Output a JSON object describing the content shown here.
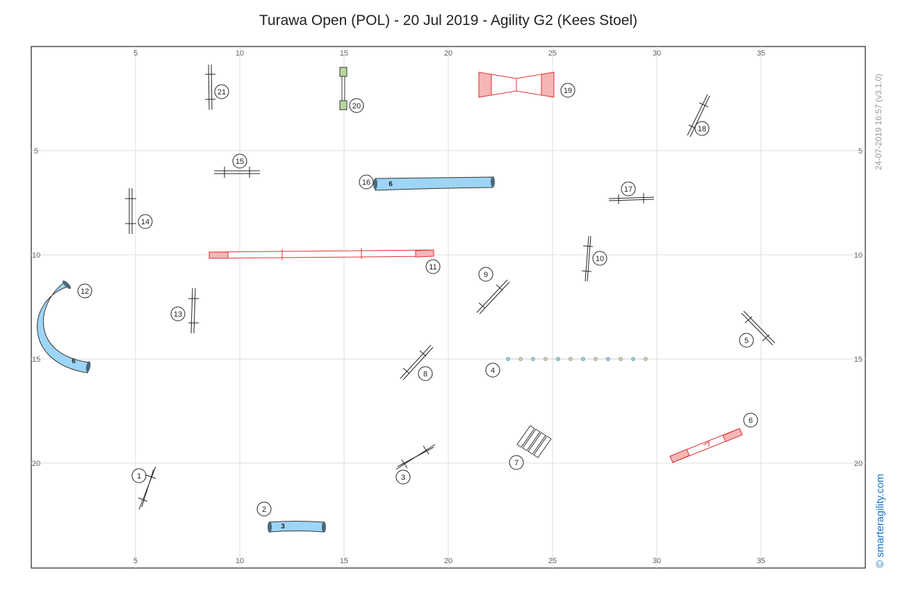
{
  "title": "Turawa Open (POL) - 20 Jul 2019 - Agility G2 (Kees Stoel)",
  "timestamp": "24-07-2019 16:57   (v3.1.0)",
  "brand": "© smarteragility.com",
  "axis": {
    "x_ticks": [
      "5",
      "10",
      "15",
      "20",
      "25",
      "30",
      "35"
    ],
    "y_ticks": [
      "5",
      "10",
      "15",
      "20"
    ]
  },
  "obstacles": {
    "n1": "1",
    "n2": "2",
    "n3": "3",
    "n4": "4",
    "n5": "5",
    "n6": "6",
    "n7": "7",
    "n8": "8",
    "n9": "9",
    "n10": "10",
    "n11": "11",
    "n12": "12",
    "n13": "13",
    "n14": "14",
    "n15": "15",
    "n16": "16",
    "n17": "17",
    "n18": "18",
    "n19": "19",
    "n20": "20",
    "n21": "21"
  },
  "tunnel_lengths": {
    "t2": "3",
    "t12": "6",
    "t16": "6"
  },
  "colors": {
    "tunnel": "#9dd5f7",
    "contact": "#f4b6b6",
    "contact_line": "#e03030",
    "grid": "#dddddd",
    "weave_blue": "#9cc8e8",
    "weave_green": "#c8d49a",
    "tyre": "#b5d89b"
  }
}
